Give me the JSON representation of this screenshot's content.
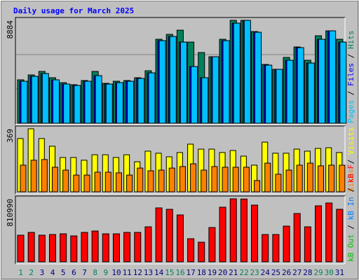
{
  "title": "Daily usage for March 2025",
  "legend_separator": " / ",
  "chart_data": [
    {
      "type": "bar",
      "ylim": [
        0,
        8884
      ],
      "yticks": [
        8884
      ],
      "series": [
        {
          "name": "Hits",
          "color": "#00805c",
          "values": [
            3745,
            4168,
            4470,
            3926,
            3503,
            3322,
            3684,
            4470,
            3443,
            3624,
            3684,
            3926,
            4530,
            7248,
            7671,
            8033,
            7006,
            6100,
            5738,
            7248,
            8884,
            8880,
            7912,
            5074,
            4651,
            5678,
            6584,
            5436,
            7550,
            7973,
            7248
          ]
        },
        {
          "name": "Files",
          "color": "#0000ff",
          "values": [
            3624,
            4047,
            4288,
            3745,
            3382,
            3262,
            3624,
            4107,
            3382,
            3503,
            3624,
            3866,
            4349,
            7127,
            7490,
            7006,
            4892,
            3926,
            5738,
            7127,
            8637,
            8879,
            7852,
            5013,
            4651,
            5436,
            6523,
            5194,
            7248,
            7973,
            7006
          ]
        },
        {
          "name": "Pages",
          "color": "#00c0ff",
          "values": [
            3624,
            4047,
            4288,
            3745,
            3382,
            3262,
            3624,
            4107,
            3382,
            3503,
            3624,
            3866,
            4349,
            7127,
            7490,
            7006,
            4892,
            3926,
            5738,
            7127,
            8637,
            8879,
            7852,
            5013,
            4651,
            5436,
            6523,
            5194,
            7248,
            7973,
            7006
          ]
        }
      ]
    },
    {
      "type": "bar",
      "ylim": [
        0,
        369
      ],
      "yticks": [
        369
      ],
      "series": [
        {
          "name": "Visits",
          "color": "#ffff00",
          "values": [
            312,
            369,
            312,
            267,
            201,
            201,
            185,
            217,
            217,
            201,
            217,
            176,
            238,
            226,
            205,
            230,
            279,
            250,
            250,
            230,
            242,
            209,
            156,
            291,
            226,
            226,
            250,
            238,
            254,
            258,
            230
          ]
        },
        {
          "name": "Sites",
          "color": "#ff8000",
          "values": [
            156,
            185,
            189,
            144,
            127,
            98,
            98,
            115,
            115,
            111,
            98,
            139,
            123,
            127,
            139,
            148,
            164,
            127,
            148,
            144,
            144,
            144,
            66,
            168,
            103,
            127,
            156,
            168,
            152,
            156,
            156
          ]
        }
      ]
    },
    {
      "type": "bar",
      "ylim": [
        0,
        810990
      ],
      "yticks": [
        810990
      ],
      "categories": [
        "1",
        "2",
        "3",
        "4",
        "5",
        "6",
        "7",
        "8",
        "9",
        "10",
        "11",
        "12",
        "13",
        "14",
        "15",
        "16",
        "17",
        "18",
        "19",
        "20",
        "21",
        "22",
        "23",
        "24",
        "25",
        "26",
        "27",
        "28",
        "29",
        "30",
        "31"
      ],
      "category_colors": [
        "#00805c",
        "#00805c",
        "#000080",
        "#000080",
        "#000080",
        "#000080",
        "#000080",
        "#00805c",
        "#00805c",
        "#000080",
        "#000080",
        "#000080",
        "#000080",
        "#000080",
        "#00805c",
        "#00805c",
        "#000080",
        "#000080",
        "#000080",
        "#000080",
        "#000080",
        "#00805c",
        "#00805c",
        "#000080",
        "#000080",
        "#000080",
        "#000080",
        "#000080",
        "#00805c",
        "#00805c",
        "#000080"
      ],
      "series": [
        {
          "name": "kB F",
          "color": "#ff0000",
          "values": [
            342418,
            378462,
            342418,
            351429,
            360440,
            333407,
            378462,
            396484,
            360440,
            360440,
            378462,
            378462,
            450550,
            693847,
            675825,
            603737,
            297363,
            252308,
            441539,
            702858,
            810990,
            808000,
            729891,
            351429,
            351429,
            459561,
            621759,
            450550,
            720880,
            756924,
            675825
          ]
        },
        {
          "name": "kB In",
          "color": "#0080ff",
          "values": [
            0,
            0,
            0,
            0,
            0,
            0,
            0,
            0,
            0,
            0,
            0,
            0,
            0,
            0,
            0,
            0,
            0,
            0,
            0,
            0,
            0,
            0,
            0,
            0,
            0,
            0,
            0,
            0,
            0,
            0,
            0
          ]
        },
        {
          "name": "kB Out",
          "color": "#00c000",
          "values": [
            0,
            0,
            0,
            0,
            0,
            0,
            0,
            0,
            0,
            0,
            0,
            0,
            0,
            0,
            0,
            0,
            0,
            0,
            0,
            0,
            0,
            0,
            0,
            0,
            0,
            0,
            0,
            0,
            0,
            0,
            0
          ]
        }
      ]
    }
  ]
}
